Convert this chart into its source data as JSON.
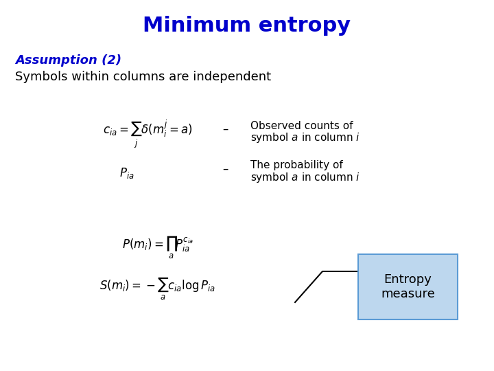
{
  "title": "Minimum entropy",
  "title_color": "#0000CC",
  "title_fontsize": 22,
  "assumption_text": "Assumption (2)",
  "assumption_color": "#0000CC",
  "assumption_fontsize": 13,
  "subtitle_text": "Symbols within columns are independent",
  "subtitle_color": "#000000",
  "subtitle_fontsize": 13,
  "desc1_line1": "Observed counts of",
  "desc1_line2": "symbol $a$ in column $i$",
  "desc2_line1": "The probability of",
  "desc2_line2": "symbol $a$ in column $i$",
  "dash": "–",
  "entropy_label": "Entropy\nmeasure",
  "box_facecolor": "#BDD7EE",
  "box_edgecolor": "#5B9BD5",
  "bg_color": "#FFFFFF"
}
